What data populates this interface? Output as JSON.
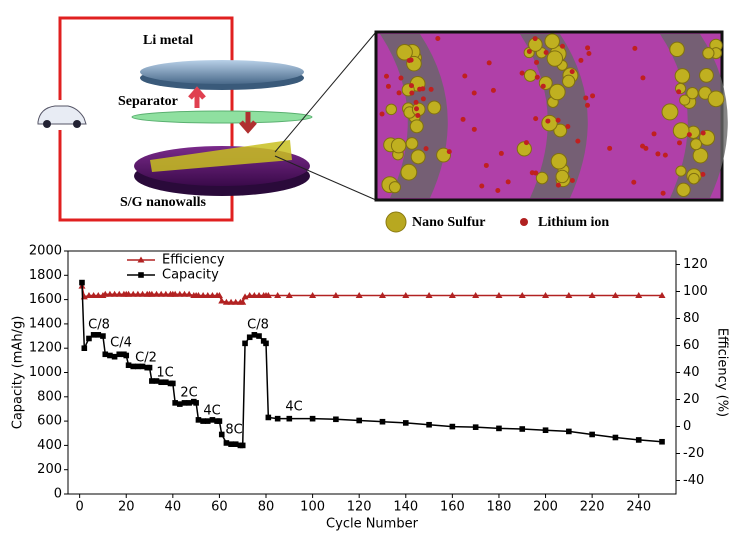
{
  "diagram": {
    "labels": [
      "Li metal",
      "Separator",
      "S/G nanowalls"
    ],
    "legend": [
      "Nano Sulfur",
      "Lithium ion"
    ]
  },
  "chart_data": {
    "type": "line",
    "x_label": "Cycle Number",
    "y_label": "Capacity (mAh/g)",
    "y2_label": "Efficiency (%)",
    "x": [
      1,
      2,
      4,
      6,
      8,
      10,
      11,
      13,
      15,
      17,
      19,
      20,
      21,
      23,
      25,
      27,
      29,
      30,
      31,
      33,
      35,
      37,
      39,
      40,
      41,
      43,
      45,
      47,
      49,
      50,
      51,
      53,
      55,
      57,
      59,
      60,
      61,
      63,
      65,
      67,
      69,
      70,
      71,
      73,
      75,
      77,
      79,
      80,
      81,
      85,
      90,
      100,
      110,
      120,
      130,
      140,
      150,
      160,
      170,
      180,
      190,
      200,
      210,
      220,
      230,
      240,
      250
    ],
    "series": [
      {
        "name": "Efficiency",
        "color": "#b22222",
        "marker": "triangle",
        "axis": "y2",
        "values": [
          104,
          96,
          97,
          97,
          97,
          97,
          98,
          98,
          98,
          98,
          98,
          98,
          98,
          98,
          98,
          98,
          98,
          98,
          98,
          98,
          98,
          98,
          98,
          98,
          98,
          98,
          98,
          98,
          97,
          97,
          97,
          97,
          97,
          97,
          97,
          97,
          93,
          92,
          92,
          92,
          92,
          92,
          96,
          97,
          97,
          97,
          97,
          97,
          97,
          97,
          97,
          97,
          97,
          97,
          97,
          97,
          97,
          97,
          97,
          97,
          97,
          97,
          97,
          97,
          97,
          97,
          97
        ]
      },
      {
        "name": "Capacity",
        "color": "#000000",
        "marker": "square",
        "values": [
          1740,
          1200,
          1280,
          1310,
          1310,
          1300,
          1150,
          1140,
          1130,
          1150,
          1150,
          1140,
          1060,
          1050,
          1050,
          1050,
          1040,
          1040,
          930,
          930,
          920,
          920,
          910,
          910,
          750,
          740,
          750,
          750,
          760,
          750,
          610,
          600,
          600,
          610,
          600,
          600,
          490,
          420,
          410,
          410,
          400,
          400,
          1240,
          1290,
          1310,
          1300,
          1260,
          1240,
          630,
          620,
          620,
          620,
          615,
          605,
          595,
          585,
          570,
          555,
          550,
          540,
          535,
          525,
          515,
          490,
          465,
          445,
          430
        ]
      }
    ],
    "xlim": [
      -5,
      256
    ],
    "xticks": [
      0,
      20,
      40,
      60,
      80,
      100,
      120,
      140,
      160,
      180,
      200,
      220,
      240
    ],
    "ylim": [
      0,
      2000
    ],
    "yticks": [
      0,
      200,
      400,
      600,
      800,
      1000,
      1200,
      1400,
      1600,
      1800,
      2000
    ],
    "y2lim": [
      -50,
      130
    ],
    "y2ticks": [
      -40,
      -20,
      0,
      20,
      40,
      60,
      80,
      100,
      120
    ],
    "annotations": [
      "C/8",
      "C/4",
      "C/2",
      "1C",
      "2C",
      "4C",
      "8C",
      "C/8",
      "4C"
    ]
  }
}
